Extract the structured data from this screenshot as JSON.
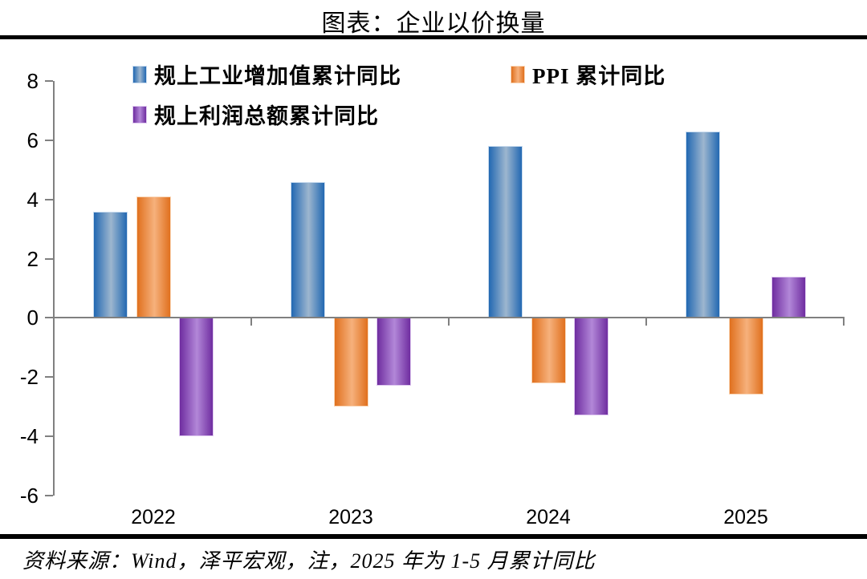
{
  "title": "图表：企业以价换量",
  "footer": "资料来源：Wind，泽平宏观，注，2025 年为 1-5 月累计同比",
  "colors": {
    "axis": "#808080",
    "divider": "#000000",
    "text": "#000000"
  },
  "chart_data": {
    "type": "bar",
    "title": "图表：企业以价换量",
    "categories": [
      "2022",
      "2023",
      "2024",
      "2025"
    ],
    "series": [
      {
        "name": "规上工业增加值累计同比",
        "values": [
          3.6,
          4.6,
          5.8,
          6.3
        ],
        "edge_color": "#2268B2",
        "mid_color": "#9DB6CF",
        "border_color": "#C9DCEF"
      },
      {
        "name": "PPI 累计同比",
        "values": [
          4.1,
          -3.0,
          -2.2,
          -2.6
        ],
        "edge_color": "#E0701E",
        "mid_color": "#F6B17C",
        "border_color": "#FAD7B8"
      },
      {
        "name": "规上利润总额累计同比",
        "values": [
          -4.0,
          -2.3,
          -3.3,
          1.4
        ],
        "edge_color": "#6F2DA0",
        "mid_color": "#B287D8",
        "border_color": "#DFC9F0"
      }
    ],
    "ylim": [
      -6,
      8
    ],
    "ytick_step": 2,
    "yticks": [
      8,
      6,
      4,
      2,
      0,
      -2,
      -4,
      -6
    ],
    "grid": false,
    "legend_position": "top-left-two-rows"
  }
}
